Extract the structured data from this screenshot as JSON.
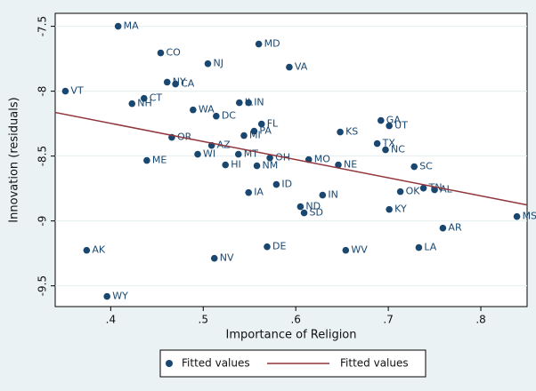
{
  "chart_data": {
    "type": "scatter",
    "x_label": "Importance of Religion",
    "y_label": "Innovation (residuals)",
    "xlim": [
      0.34,
      0.85
    ],
    "ylim": [
      -9.66,
      -7.4
    ],
    "xticks": [
      {
        "value": 0.4,
        "label": ".4"
      },
      {
        "value": 0.5,
        "label": ".5"
      },
      {
        "value": 0.6,
        "label": ".6"
      },
      {
        "value": 0.7,
        "label": ".7"
      },
      {
        "value": 0.8,
        "label": ".8"
      }
    ],
    "yticks": [
      -7.5,
      -8,
      -8.5,
      -9,
      -9.5
    ],
    "grid": true,
    "legend": "bottom",
    "series": [
      {
        "name": "Fitted values",
        "color": "#1a476f",
        "mark": "dot",
        "labels": [
          "MA",
          "CO",
          "NJ",
          "MD",
          "VA",
          "VT",
          "NY",
          "CA",
          "CT",
          "NH",
          "WA",
          "DC",
          "IL",
          "IN",
          "FL",
          "PA",
          "MI",
          "GA",
          "UT",
          "KS",
          "TX",
          "NC",
          "OR",
          "SC",
          "OK",
          "TN",
          "AL",
          "KY",
          "AR",
          "MS",
          "LA",
          "WV",
          "DE",
          "NV",
          "AK",
          "WY",
          "ND",
          "SD",
          "IN",
          "IA",
          "ID",
          "NM",
          "MO",
          "NE",
          "OH",
          "MT",
          "HI",
          "WI",
          "ME",
          "AZ"
        ],
        "x": [
          0.408,
          0.454,
          0.505,
          0.56,
          0.593,
          0.351,
          0.461,
          0.47,
          0.436,
          0.423,
          0.489,
          0.514,
          0.539,
          0.549,
          0.563,
          0.555,
          0.544,
          0.692,
          0.701,
          0.648,
          0.688,
          0.697,
          0.466,
          0.728,
          0.713,
          0.738,
          0.75,
          0.701,
          0.759,
          0.839,
          0.733,
          0.654,
          0.569,
          0.512,
          0.374,
          0.396,
          0.605,
          0.609,
          0.629,
          0.549,
          0.579,
          0.558,
          0.614,
          0.646,
          0.572,
          0.538,
          0.524,
          0.494,
          0.439,
          0.509
        ],
        "values": [
          -7.5,
          -7.705,
          -7.788,
          -7.637,
          -7.815,
          -8.0,
          -7.93,
          -7.945,
          -8.055,
          -8.096,
          -8.144,
          -8.192,
          -8.089,
          -8.089,
          -8.253,
          -8.308,
          -8.342,
          -8.226,
          -8.267,
          -8.315,
          -8.404,
          -8.452,
          -8.356,
          -8.582,
          -8.774,
          -8.747,
          -8.76,
          -8.911,
          -9.055,
          -8.966,
          -9.205,
          -9.226,
          -9.199,
          -9.288,
          -9.226,
          -9.582,
          -8.89,
          -8.938,
          -8.801,
          -8.781,
          -8.719,
          -8.575,
          -8.527,
          -8.568,
          -8.514,
          -8.486,
          -8.568,
          -8.486,
          -8.534,
          -8.418
        ]
      },
      {
        "name": "Fitted values",
        "color": "#90353b",
        "mark": "line",
        "x": [
          0.34,
          0.85
        ],
        "values": [
          -8.164,
          -8.877
        ]
      }
    ]
  }
}
